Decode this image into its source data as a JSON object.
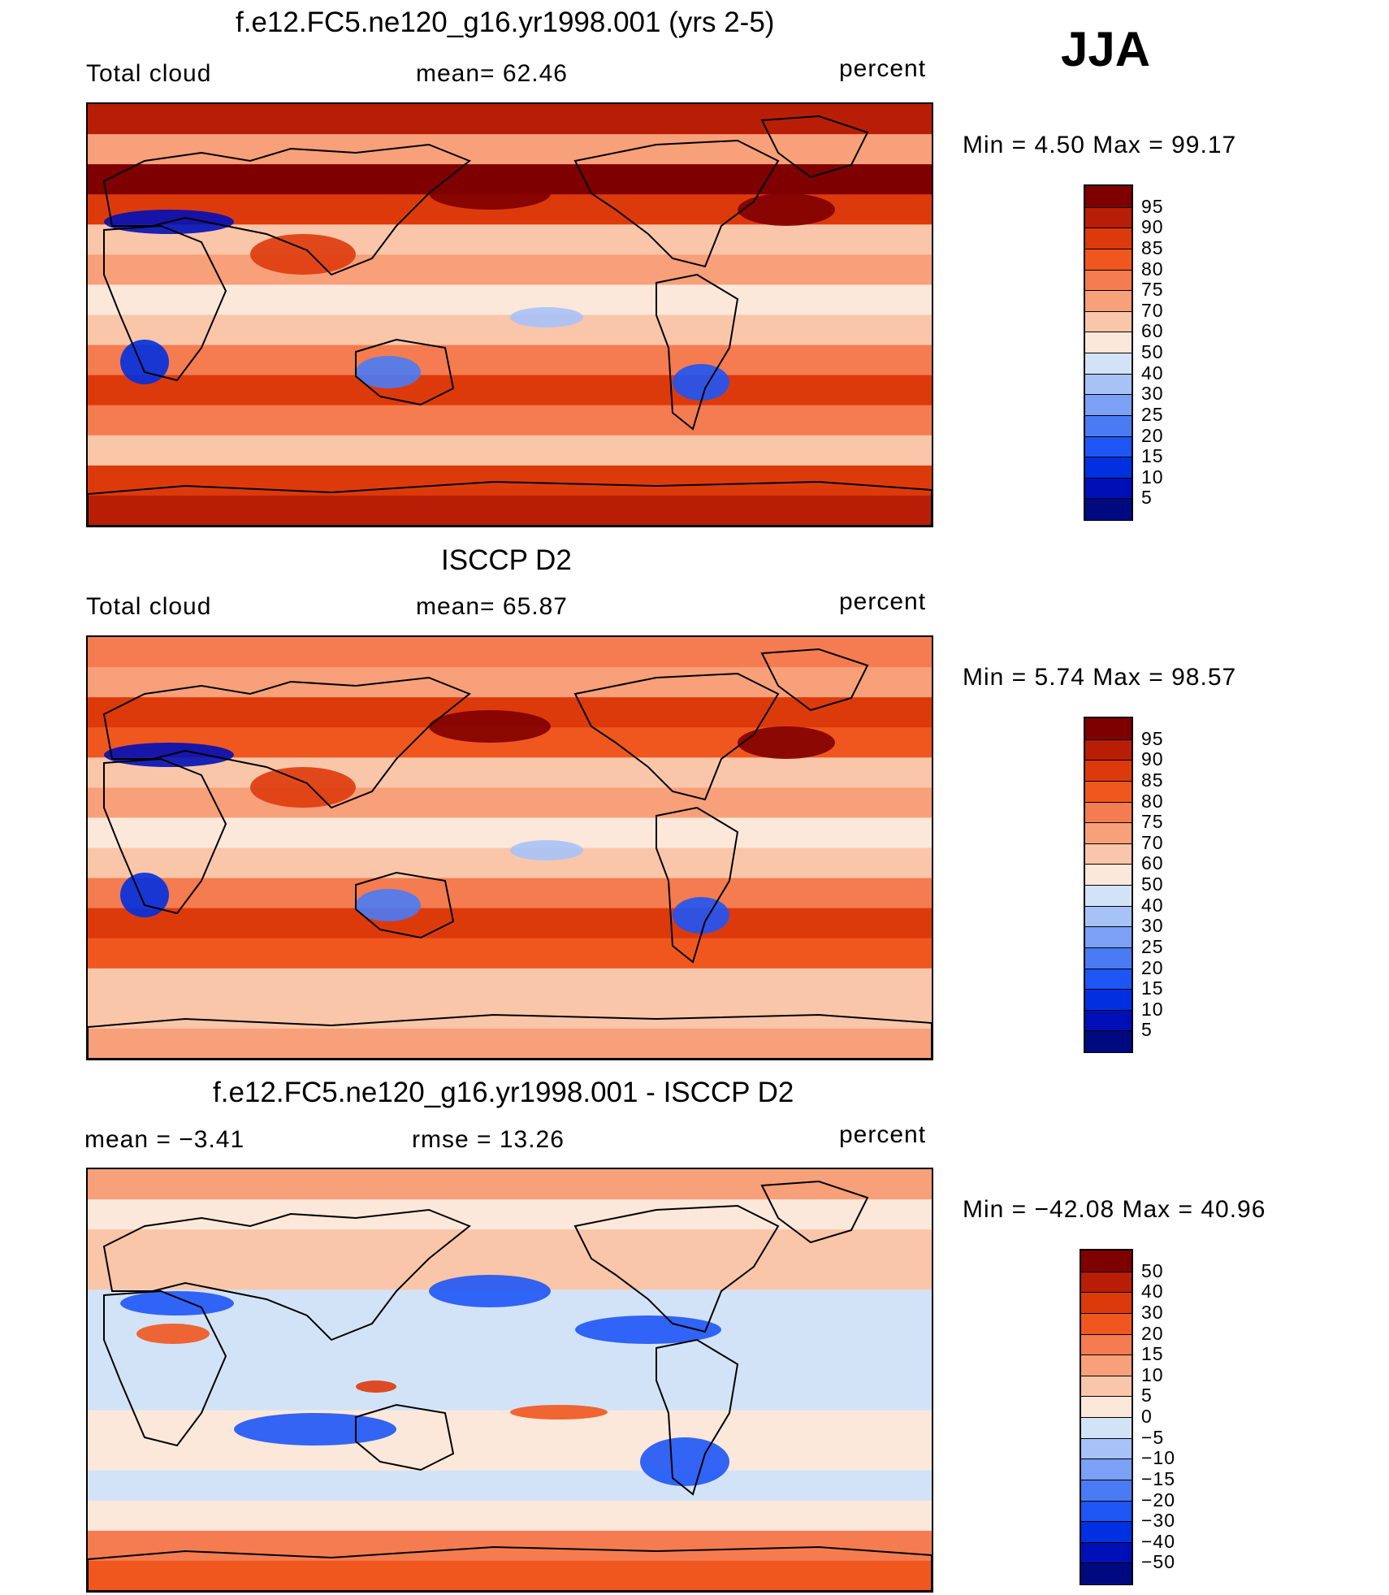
{
  "season": "JJA",
  "colors": {
    "fraction_scale": [
      "#000a80",
      "#0010b8",
      "#0030e0",
      "#1e55f5",
      "#4a7bf5",
      "#7ba0f5",
      "#a7c2f7",
      "#d3e3f7",
      "#fbe8da",
      "#f9c6a9",
      "#f7a07a",
      "#f47c50",
      "#f0571f",
      "#dd3a0c",
      "#b81e05",
      "#7f0000"
    ],
    "diff_scale": [
      "#000a80",
      "#0010b8",
      "#0030e0",
      "#1e55f5",
      "#4a7bf5",
      "#7ba0f5",
      "#a7c2f7",
      "#d3e3f7",
      "#fbe8da",
      "#f9c6a9",
      "#f7a07a",
      "#f47c50",
      "#f0571f",
      "#dd3a0c",
      "#b81e05",
      "#7f0000"
    ],
    "coast": "#000000"
  },
  "panels": [
    {
      "title": "f.e12.FC5.ne120_g16.yr1998.001 (yrs 2-5)",
      "left_label": "Total cloud",
      "mid_label": "mean=   62.46",
      "right_label": "percent",
      "minmax": "Min  =     4.50  Max  =    99.17",
      "colorbar_labels": [
        "95",
        "90",
        "85",
        "80",
        "75",
        "70",
        "60",
        "50",
        "40",
        "30",
        "25",
        "20",
        "15",
        "10",
        "5"
      ],
      "zonal_profile": [
        92,
        70,
        95,
        88,
        62,
        72,
        55,
        60,
        78,
        88,
        75,
        62,
        85,
        94
      ]
    },
    {
      "title": "ISCCP D2",
      "left_label": "Total cloud",
      "mid_label": "mean=   65.87",
      "right_label": "percent",
      "minmax": "Min  =     5.74  Max  =    98.57",
      "colorbar_labels": [
        "95",
        "90",
        "85",
        "80",
        "75",
        "70",
        "60",
        "50",
        "40",
        "30",
        "25",
        "20",
        "15",
        "10",
        "5"
      ],
      "zonal_profile": [
        78,
        70,
        88,
        80,
        64,
        74,
        58,
        62,
        76,
        86,
        80,
        62,
        66,
        70
      ]
    },
    {
      "title": "f.e12.FC5.ne120_g16.yr1998.001 - ISCCP D2",
      "left_label": "mean  =    −3.41",
      "mid_label": "rmse  =    13.26",
      "right_label": "percent",
      "minmax": "Min  = −42.08  Max  =    40.96",
      "colorbar_labels": [
        "50",
        "40",
        "30",
        "20",
        "15",
        "10",
        "5",
        "0",
        "−5",
        "−10",
        "−15",
        "−20",
        "−30",
        "−40",
        "−50"
      ],
      "zonal_profile": [
        14,
        0,
        7,
        8,
        -2,
        -2,
        -3,
        -2,
        2,
        2,
        -5,
        0,
        19,
        24
      ]
    }
  ]
}
